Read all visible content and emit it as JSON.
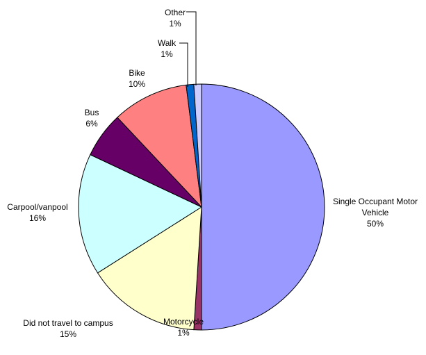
{
  "chart_data": {
    "type": "pie",
    "categories": [
      "Single Occupant Motor Vehicle",
      "Motorcycle",
      "Did not travel to campus",
      "Carpool/vanpool",
      "Bus",
      "Bike",
      "Walk",
      "Other"
    ],
    "values": [
      50,
      1,
      15,
      16,
      6,
      10,
      1,
      1
    ],
    "value_labels": [
      "50%",
      "1%",
      "15%",
      "16%",
      "6%",
      "10%",
      "1%",
      "1%"
    ],
    "colors": [
      "#9999ff",
      "#993366",
      "#ffffcc",
      "#ccffff",
      "#660066",
      "#ff8080",
      "#0066cc",
      "#ccccff"
    ]
  }
}
